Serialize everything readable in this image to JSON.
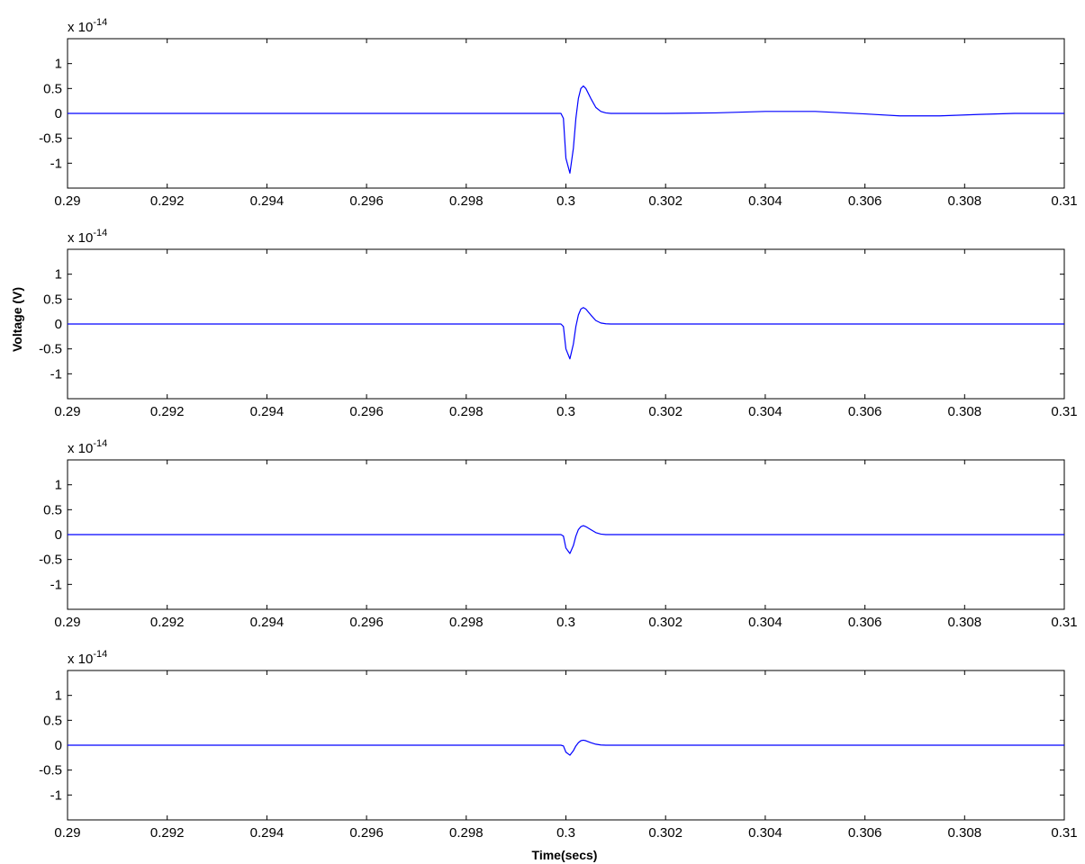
{
  "figure": {
    "ylabel": "Voltage (V)",
    "xlabel": "Time(secs)",
    "colors": {
      "line": "#0000ff",
      "axes": "#000000",
      "background": "#ffffff"
    }
  },
  "chart_data": [
    {
      "type": "line",
      "exponent_label_base": "x 10",
      "exponent_label_power": "-14",
      "xlim": [
        0.29,
        0.31
      ],
      "ylim": [
        -1.5,
        1.5
      ],
      "x_ticks": [
        0.29,
        0.292,
        0.294,
        0.296,
        0.298,
        0.3,
        0.302,
        0.304,
        0.306,
        0.308,
        0.31
      ],
      "x_tick_labels": [
        "0.29",
        "0.292",
        "0.294",
        "0.296",
        "0.298",
        "0.3",
        "0.302",
        "0.304",
        "0.306",
        "0.308",
        "0.31"
      ],
      "y_ticks": [
        1,
        0.5,
        0,
        -0.5,
        -1
      ],
      "y_tick_labels": [
        "1",
        "0.5",
        "0",
        "-0.5",
        "-1"
      ],
      "grid": false,
      "series": [
        {
          "color": "#0000ff",
          "points": [
            [
              0.29,
              0
            ],
            [
              0.2999,
              0
            ],
            [
              0.29995,
              -0.1
            ],
            [
              0.3,
              -0.9
            ],
            [
              0.30008,
              -1.2
            ],
            [
              0.30015,
              -0.7
            ],
            [
              0.3002,
              -0.1
            ],
            [
              0.30025,
              0.3
            ],
            [
              0.3003,
              0.5
            ],
            [
              0.30035,
              0.55
            ],
            [
              0.3004,
              0.5
            ],
            [
              0.3005,
              0.3
            ],
            [
              0.3006,
              0.12
            ],
            [
              0.3007,
              0.04
            ],
            [
              0.3008,
              0.01
            ],
            [
              0.3009,
              0
            ],
            [
              0.302,
              0
            ],
            [
              0.303,
              0.01
            ],
            [
              0.304,
              0.04
            ],
            [
              0.305,
              0.04
            ],
            [
              0.306,
              -0.01
            ],
            [
              0.3067,
              -0.05
            ],
            [
              0.3075,
              -0.05
            ],
            [
              0.3083,
              -0.02
            ],
            [
              0.309,
              0
            ],
            [
              0.31,
              0
            ]
          ]
        }
      ]
    },
    {
      "type": "line",
      "exponent_label_base": "x 10",
      "exponent_label_power": "-14",
      "xlim": [
        0.29,
        0.31
      ],
      "ylim": [
        -1.5,
        1.5
      ],
      "x_ticks": [
        0.29,
        0.292,
        0.294,
        0.296,
        0.298,
        0.3,
        0.302,
        0.304,
        0.306,
        0.308,
        0.31
      ],
      "x_tick_labels": [
        "0.29",
        "0.292",
        "0.294",
        "0.296",
        "0.298",
        "0.3",
        "0.302",
        "0.304",
        "0.306",
        "0.308",
        "0.31"
      ],
      "y_ticks": [
        1,
        0.5,
        0,
        -0.5,
        -1
      ],
      "y_tick_labels": [
        "1",
        "0.5",
        "0",
        "-0.5",
        "-1"
      ],
      "grid": false,
      "series": [
        {
          "color": "#0000ff",
          "points": [
            [
              0.29,
              0
            ],
            [
              0.2999,
              0
            ],
            [
              0.29995,
              -0.05
            ],
            [
              0.3,
              -0.5
            ],
            [
              0.30008,
              -0.7
            ],
            [
              0.30015,
              -0.4
            ],
            [
              0.3002,
              -0.05
            ],
            [
              0.30025,
              0.18
            ],
            [
              0.3003,
              0.3
            ],
            [
              0.30035,
              0.33
            ],
            [
              0.3004,
              0.3
            ],
            [
              0.3005,
              0.18
            ],
            [
              0.3006,
              0.07
            ],
            [
              0.3007,
              0.02
            ],
            [
              0.3008,
              0.005
            ],
            [
              0.3009,
              0
            ],
            [
              0.31,
              0
            ]
          ]
        }
      ]
    },
    {
      "type": "line",
      "exponent_label_base": "x 10",
      "exponent_label_power": "-14",
      "xlim": [
        0.29,
        0.31
      ],
      "ylim": [
        -1.5,
        1.5
      ],
      "x_ticks": [
        0.29,
        0.292,
        0.294,
        0.296,
        0.298,
        0.3,
        0.302,
        0.304,
        0.306,
        0.308,
        0.31
      ],
      "x_tick_labels": [
        "0.29",
        "0.292",
        "0.294",
        "0.296",
        "0.298",
        "0.3",
        "0.302",
        "0.304",
        "0.306",
        "0.308",
        "0.31"
      ],
      "y_ticks": [
        1,
        0.5,
        0,
        -0.5,
        -1
      ],
      "y_tick_labels": [
        "1",
        "0.5",
        "0",
        "-0.5",
        "-1"
      ],
      "grid": false,
      "series": [
        {
          "color": "#0000ff",
          "points": [
            [
              0.29,
              0
            ],
            [
              0.2999,
              0
            ],
            [
              0.29995,
              -0.03
            ],
            [
              0.3,
              -0.27
            ],
            [
              0.30008,
              -0.38
            ],
            [
              0.30015,
              -0.22
            ],
            [
              0.3002,
              -0.03
            ],
            [
              0.30025,
              0.1
            ],
            [
              0.3003,
              0.16
            ],
            [
              0.30035,
              0.18
            ],
            [
              0.3004,
              0.16
            ],
            [
              0.3005,
              0.1
            ],
            [
              0.3006,
              0.04
            ],
            [
              0.3007,
              0.01
            ],
            [
              0.3008,
              0
            ],
            [
              0.31,
              0
            ]
          ]
        }
      ]
    },
    {
      "type": "line",
      "exponent_label_base": "x 10",
      "exponent_label_power": "-14",
      "xlim": [
        0.29,
        0.31
      ],
      "ylim": [
        -1.5,
        1.5
      ],
      "x_ticks": [
        0.29,
        0.292,
        0.294,
        0.296,
        0.298,
        0.3,
        0.302,
        0.304,
        0.306,
        0.308,
        0.31
      ],
      "x_tick_labels": [
        "0.29",
        "0.292",
        "0.294",
        "0.296",
        "0.298",
        "0.3",
        "0.302",
        "0.304",
        "0.306",
        "0.308",
        "0.31"
      ],
      "y_ticks": [
        1,
        0.5,
        0,
        -0.5,
        -1
      ],
      "y_tick_labels": [
        "1",
        "0.5",
        "0",
        "-0.5",
        "-1"
      ],
      "grid": false,
      "series": [
        {
          "color": "#0000ff",
          "points": [
            [
              0.29,
              0
            ],
            [
              0.2999,
              0
            ],
            [
              0.29995,
              -0.015
            ],
            [
              0.3,
              -0.14
            ],
            [
              0.30008,
              -0.2
            ],
            [
              0.30015,
              -0.11
            ],
            [
              0.3002,
              -0.015
            ],
            [
              0.30025,
              0.05
            ],
            [
              0.3003,
              0.09
            ],
            [
              0.30035,
              0.1
            ],
            [
              0.3004,
              0.09
            ],
            [
              0.3005,
              0.05
            ],
            [
              0.3006,
              0.02
            ],
            [
              0.3007,
              0.005
            ],
            [
              0.3008,
              0
            ],
            [
              0.31,
              0
            ]
          ]
        }
      ]
    }
  ]
}
